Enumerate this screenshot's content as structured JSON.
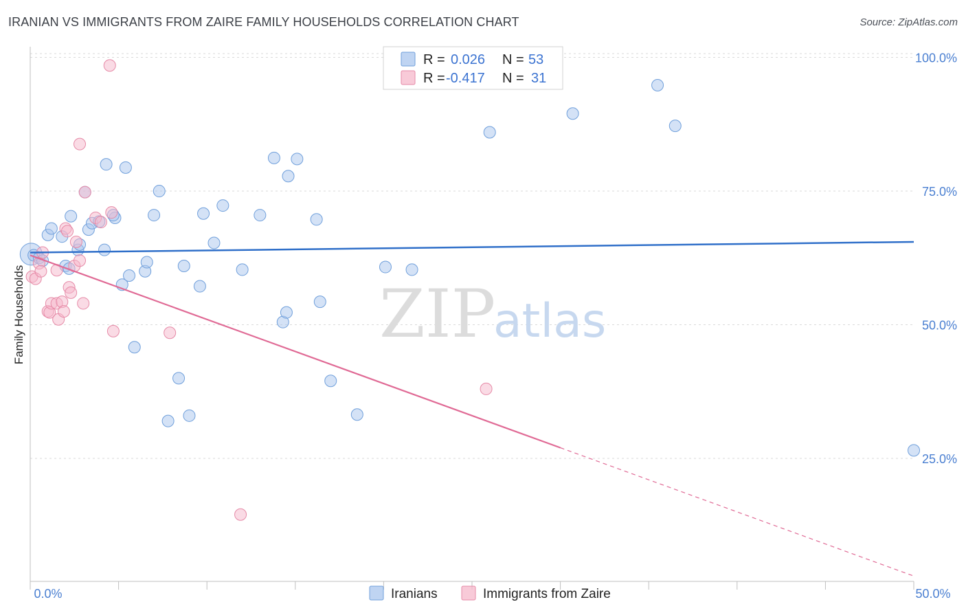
{
  "chart_data": {
    "type": "scatter",
    "title": "IRANIAN VS IMMIGRANTS FROM ZAIRE FAMILY HOUSEHOLDS CORRELATION CHART",
    "source": "Source: ZipAtlas.com",
    "xlabel": "",
    "ylabel": "Family Households",
    "xlim": [
      0,
      50
    ],
    "ylim": [
      2,
      102
    ],
    "x_tick_labels": [
      "0.0%",
      "50.0%"
    ],
    "y_ticks": [
      25,
      50,
      75,
      100
    ],
    "y_tick_labels": [
      "25.0%",
      "50.0%",
      "75.0%",
      "100.0%"
    ],
    "watermark": {
      "zip": "ZIP",
      "atlas": "atlas"
    },
    "legend": {
      "r_label": "R =",
      "n_label": "N =",
      "entries": [
        {
          "name": "Iranians",
          "r": "0.026",
          "n": "53"
        },
        {
          "name": "Immigrants from Zaire",
          "r": "-0.417",
          "n": "31"
        }
      ]
    },
    "colors": {
      "iranians_fill": "#a9c6ee",
      "iranians_stroke": "#6f9fdb",
      "iranians_line": "#2f6fc9",
      "zaire_fill": "#f5b8cb",
      "zaire_stroke": "#e68aa7",
      "zaire_line": "#e06a95",
      "tick": "#4a7fd1",
      "grid": "#d9d9d9"
    },
    "series": [
      {
        "name": "Iranians",
        "trend": {
          "x": [
            0,
            50
          ],
          "y": [
            63.5,
            65.5
          ],
          "dashed_from": null
        },
        "points": [
          [
            0.2,
            63.0
          ],
          [
            0.5,
            62.5
          ],
          [
            0.7,
            62.0
          ],
          [
            1.0,
            66.8
          ],
          [
            1.2,
            68.0
          ],
          [
            1.8,
            66.5
          ],
          [
            2.0,
            61.0
          ],
          [
            2.2,
            60.5
          ],
          [
            2.3,
            70.3
          ],
          [
            2.7,
            64.0
          ],
          [
            2.8,
            65.0
          ],
          [
            3.1,
            74.8
          ],
          [
            3.3,
            67.8
          ],
          [
            3.5,
            69.0
          ],
          [
            3.9,
            69.3
          ],
          [
            4.2,
            64.0
          ],
          [
            4.3,
            80.0
          ],
          [
            4.8,
            70.0
          ],
          [
            4.7,
            70.5
          ],
          [
            5.2,
            57.5
          ],
          [
            5.4,
            79.4
          ],
          [
            5.6,
            59.2
          ],
          [
            5.9,
            45.8
          ],
          [
            6.5,
            60.0
          ],
          [
            6.6,
            61.7
          ],
          [
            7.0,
            70.5
          ],
          [
            7.3,
            75.0
          ],
          [
            7.8,
            32.0
          ],
          [
            8.4,
            40.0
          ],
          [
            8.7,
            61.0
          ],
          [
            9.0,
            33.0
          ],
          [
            9.6,
            57.2
          ],
          [
            9.8,
            70.8
          ],
          [
            10.4,
            65.3
          ],
          [
            10.9,
            72.3
          ],
          [
            12.0,
            60.3
          ],
          [
            13.0,
            70.5
          ],
          [
            13.8,
            81.2
          ],
          [
            14.3,
            50.5
          ],
          [
            14.5,
            52.3
          ],
          [
            14.6,
            77.8
          ],
          [
            15.1,
            81.0
          ],
          [
            16.2,
            69.7
          ],
          [
            16.4,
            54.3
          ],
          [
            17.0,
            39.5
          ],
          [
            18.5,
            33.2
          ],
          [
            20.1,
            60.8
          ],
          [
            21.6,
            60.3
          ],
          [
            26.0,
            86.0
          ],
          [
            30.7,
            89.5
          ],
          [
            35.5,
            94.8
          ],
          [
            36.5,
            87.2
          ],
          [
            50.0,
            26.5
          ]
        ]
      },
      {
        "name": "Immigrants from Zaire",
        "trend": {
          "x": [
            0,
            50
          ],
          "y": [
            63.0,
            3.0
          ],
          "dashed_from": 30
        },
        "points": [
          [
            0.1,
            59.0
          ],
          [
            0.3,
            58.6
          ],
          [
            0.5,
            61.5
          ],
          [
            0.6,
            60.0
          ],
          [
            0.7,
            63.5
          ],
          [
            1.0,
            52.5
          ],
          [
            1.1,
            52.3
          ],
          [
            1.2,
            54.0
          ],
          [
            1.5,
            54.0
          ],
          [
            1.5,
            60.2
          ],
          [
            1.6,
            51.0
          ],
          [
            1.8,
            54.3
          ],
          [
            1.9,
            52.5
          ],
          [
            2.0,
            68.0
          ],
          [
            2.1,
            67.5
          ],
          [
            2.2,
            57.0
          ],
          [
            2.3,
            56.0
          ],
          [
            2.5,
            61.0
          ],
          [
            2.6,
            65.5
          ],
          [
            2.8,
            62.0
          ],
          [
            2.8,
            83.8
          ],
          [
            3.0,
            54.0
          ],
          [
            3.1,
            74.8
          ],
          [
            3.7,
            70.0
          ],
          [
            4.0,
            69.2
          ],
          [
            4.5,
            98.5
          ],
          [
            4.6,
            71.0
          ],
          [
            4.7,
            48.8
          ],
          [
            7.9,
            48.5
          ],
          [
            11.9,
            14.5
          ],
          [
            25.8,
            38.0
          ]
        ]
      }
    ]
  }
}
